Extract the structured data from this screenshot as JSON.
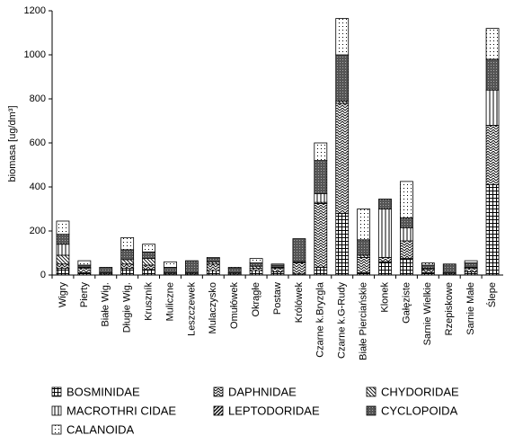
{
  "chart_data": {
    "type": "stacked-bar",
    "ylabel": "biomasa [ug/dm³]",
    "ylim": [
      0,
      1200
    ],
    "yticks": [
      0,
      200,
      400,
      600,
      800,
      1000,
      1200
    ],
    "categories": [
      "Wigry",
      "Pierty",
      "Białe Wig.",
      "Długie Wig.",
      "Kruszník",
      "Muliczne",
      "Leszczewek",
      "Mulaczysko",
      "Omułówek",
      "Okrągłe",
      "Postaw",
      "Królówek",
      "Czarne k.Bryzgla",
      "Czarne k.G-Rudy",
      "Białe Pierciańskie",
      "Klonek",
      "Gałęziste",
      "Sarnie Wielkie",
      "Rzepiskowe",
      "Sarnie Małe",
      "Ślepe"
    ],
    "series": [
      {
        "name": "BOSMINIDAE",
        "color": "#000000",
        "pattern": "grid",
        "values": [
          30,
          10,
          5,
          30,
          25,
          5,
          5,
          20,
          5,
          20,
          15,
          5,
          35,
          280,
          10,
          60,
          75,
          10,
          5,
          15,
          410
        ]
      },
      {
        "name": "DAPHNIDAE",
        "color": "#000000",
        "pattern": "zigzag",
        "values": [
          20,
          20,
          5,
          20,
          20,
          5,
          5,
          30,
          5,
          10,
          15,
          50,
          290,
          500,
          70,
          20,
          80,
          15,
          5,
          15,
          270
        ]
      },
      {
        "name": "CHYDORIDAE",
        "color": "#000000",
        "pattern": "diag",
        "values": [
          40,
          5,
          0,
          20,
          30,
          0,
          0,
          10,
          0,
          10,
          5,
          5,
          5,
          10,
          10,
          0,
          0,
          5,
          0,
          5,
          0
        ]
      },
      {
        "name": "MACROTHRI CIDAE",
        "color": "#000000",
        "pattern": "vert",
        "values": [
          50,
          0,
          0,
          0,
          0,
          0,
          0,
          0,
          0,
          0,
          0,
          0,
          40,
          0,
          0,
          220,
          60,
          0,
          0,
          0,
          160
        ]
      },
      {
        "name": "LEPTODORIDAE",
        "color": "#000000",
        "pattern": "back",
        "values": [
          0,
          0,
          0,
          0,
          0,
          0,
          0,
          0,
          0,
          0,
          0,
          0,
          0,
          0,
          0,
          0,
          0,
          0,
          0,
          0,
          0
        ]
      },
      {
        "name": "CYCLOPOIDA",
        "color": "#000000",
        "pattern": "dark",
        "values": [
          45,
          10,
          25,
          45,
          30,
          25,
          55,
          15,
          20,
          15,
          10,
          105,
          150,
          210,
          70,
          45,
          45,
          15,
          40,
          20,
          140
        ]
      },
      {
        "name": "CALANOIDA",
        "color": "#000000",
        "pattern": "dots",
        "values": [
          60,
          20,
          0,
          55,
          35,
          25,
          0,
          5,
          5,
          20,
          5,
          0,
          80,
          165,
          140,
          0,
          165,
          10,
          0,
          10,
          140
        ]
      }
    ]
  }
}
